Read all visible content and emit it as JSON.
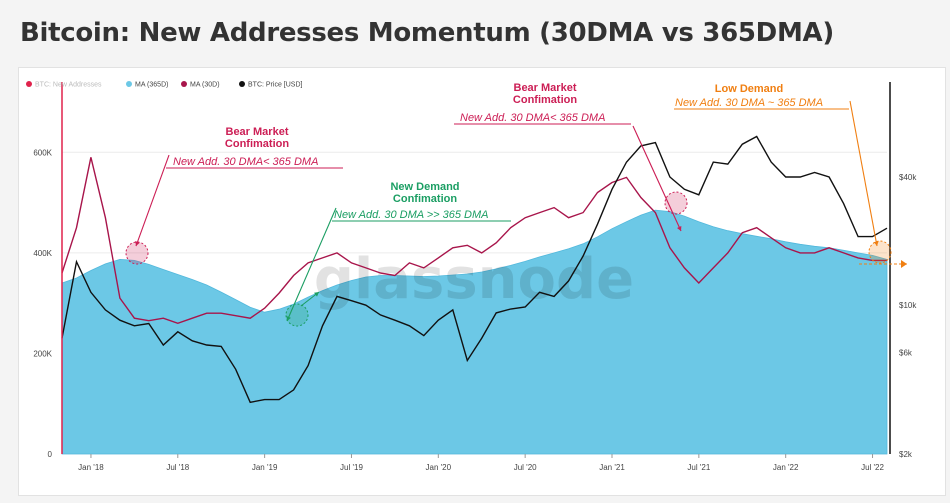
{
  "header": {
    "title": "Bitcoin: New Addresses Momentum (30DMA vs 365DMA)"
  },
  "watermark": "glassnode",
  "colors": {
    "new_addresses": "#e0224c",
    "ma365": "#6cc8e6",
    "ma30": "#a8154b",
    "price": "#111111",
    "bear": "#cc1e55",
    "demand": "#1b9e63",
    "low": "#f07f12"
  },
  "legend": [
    {
      "label": "BTC: New Addresses",
      "color": "#e0224c"
    },
    {
      "label": "MA (365D)",
      "color": "#6cc8e6"
    },
    {
      "label": "MA (30D)",
      "color": "#a8154b"
    },
    {
      "label": "BTC: Price [USD]",
      "color": "#111111"
    }
  ],
  "annotations": [
    {
      "heading": "Bear Market\nConfimation",
      "body": "New Add. 30 DMA< 365 DMA",
      "color": "#cc1e55"
    },
    {
      "heading": "New Demand\nConfimation",
      "body": "New Add. 30 DMA >> 365 DMA",
      "color": "#1b9e63"
    },
    {
      "heading": "Bear Market\nConfimation",
      "body": "New Add. 30 DMA< 365 DMA",
      "color": "#cc1e55"
    },
    {
      "heading": "Low Demand",
      "body": "New Add. 30 DMA ~ 365 DMA",
      "color": "#f07f12"
    }
  ],
  "chart_data": {
    "type": "area",
    "title": "Bitcoin: New Addresses Momentum (30DMA vs 365DMA)",
    "x": [
      "Nov '17",
      "Dec '17",
      "Jan '18",
      "Feb '18",
      "Mar '18",
      "Apr '18",
      "May '18",
      "Jun '18",
      "Jul '18",
      "Aug '18",
      "Sep '18",
      "Oct '18",
      "Nov '18",
      "Dec '18",
      "Jan '19",
      "Feb '19",
      "Mar '19",
      "Apr '19",
      "May '19",
      "Jun '19",
      "Jul '19",
      "Aug '19",
      "Sep '19",
      "Oct '19",
      "Nov '19",
      "Dec '19",
      "Jan '20",
      "Feb '20",
      "Mar '20",
      "Apr '20",
      "May '20",
      "Jun '20",
      "Jul '20",
      "Aug '20",
      "Sep '20",
      "Oct '20",
      "Nov '20",
      "Dec '20",
      "Jan '21",
      "Feb '21",
      "Mar '21",
      "Apr '21",
      "May '21",
      "Jun '21",
      "Jul '21",
      "Aug '21",
      "Sep '21",
      "Oct '21",
      "Nov '21",
      "Dec '21",
      "Jan '22",
      "Feb '22",
      "Mar '22",
      "Apr '22",
      "May '22",
      "Jun '22",
      "Jul '22",
      "Aug '22"
    ],
    "xticks": [
      "Jan '18",
      "Jul '18",
      "Jan '19",
      "Jul '19",
      "Jan '20",
      "Jul '20",
      "Jan '21",
      "Jul '21",
      "Jan '22",
      "Jul '22"
    ],
    "y_left_ticks": [
      "0",
      "200K",
      "400K",
      "600K"
    ],
    "y_right_ticks": [
      "$2k",
      "$6k",
      "$10k",
      "$40k"
    ],
    "ylim_left": [
      0,
      700000
    ],
    "ylim_right_log": [
      2000,
      90000
    ],
    "series": [
      {
        "name": "MA (365D)",
        "axis": "left",
        "values": [
          340000,
          350000,
          365000,
          378000,
          387000,
          385000,
          377000,
          367000,
          357000,
          347000,
          336000,
          322000,
          307000,
          292000,
          282000,
          288000,
          298000,
          312000,
          325000,
          336000,
          345000,
          352000,
          355000,
          355000,
          354000,
          353000,
          354000,
          356000,
          358000,
          362000,
          368000,
          375000,
          383000,
          392000,
          400000,
          408000,
          418000,
          432000,
          448000,
          462000,
          475000,
          485000,
          482000,
          473000,
          462000,
          452000,
          444000,
          438000,
          433000,
          428000,
          422000,
          417000,
          413000,
          410000,
          405000,
          400000,
          395000,
          387000
        ]
      },
      {
        "name": "MA (30D)",
        "axis": "left",
        "values": [
          360000,
          450000,
          590000,
          470000,
          310000,
          270000,
          265000,
          270000,
          260000,
          270000,
          280000,
          280000,
          275000,
          270000,
          290000,
          320000,
          355000,
          380000,
          390000,
          400000,
          380000,
          370000,
          360000,
          355000,
          380000,
          370000,
          390000,
          410000,
          415000,
          400000,
          420000,
          450000,
          470000,
          480000,
          490000,
          470000,
          480000,
          520000,
          540000,
          550000,
          510000,
          480000,
          410000,
          370000,
          340000,
          370000,
          400000,
          440000,
          450000,
          430000,
          410000,
          400000,
          400000,
          410000,
          400000,
          390000,
          385000,
          385000
        ]
      },
      {
        "name": "BTC: Price [USD]",
        "axis": "right",
        "values": [
          7000,
          16000,
          11500,
          9500,
          8500,
          8000,
          8200,
          6500,
          7500,
          6800,
          6500,
          6400,
          5000,
          3500,
          3600,
          3600,
          4000,
          5200,
          8000,
          11000,
          10500,
          10000,
          9000,
          8500,
          8000,
          7200,
          8500,
          9500,
          5500,
          7000,
          9200,
          9600,
          9800,
          11500,
          11000,
          13000,
          17000,
          24000,
          35000,
          47000,
          56000,
          58000,
          40000,
          35000,
          33000,
          47000,
          46000,
          57000,
          62000,
          47000,
          40000,
          40000,
          42000,
          40000,
          30000,
          21000,
          21000,
          23000
        ]
      }
    ]
  }
}
